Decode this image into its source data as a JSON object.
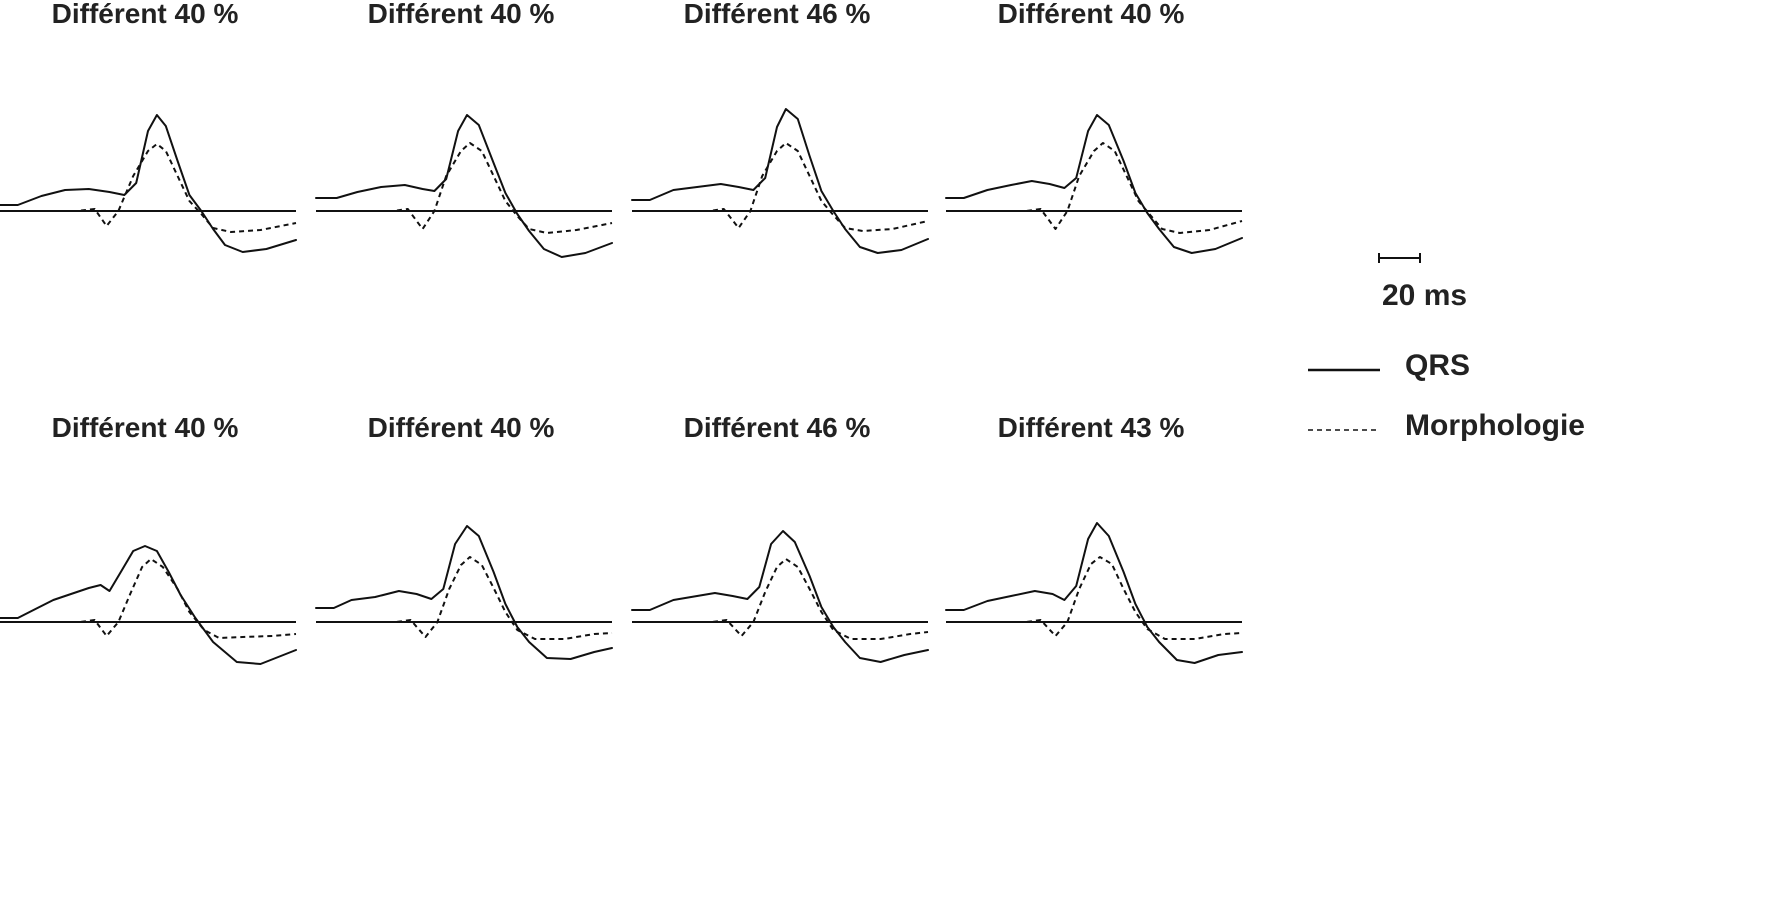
{
  "chart_data": {
    "type": "line",
    "colors": {
      "ink": "#111111",
      "text": "#222222",
      "background": "#ffffff"
    },
    "scale_bar": {
      "duration_ms": 20,
      "label": "20 ms"
    },
    "legend": [
      {
        "label": "QRS",
        "style": "solid"
      },
      {
        "label": "Morphologie",
        "style": "dashed"
      }
    ],
    "panels": [
      {
        "title": "Différent 40 %",
        "row": 0,
        "col": 0,
        "qrs": [
          [
            0,
            -6
          ],
          [
            6,
            -6
          ],
          [
            14,
            -15
          ],
          [
            22,
            -21
          ],
          [
            30,
            -22
          ],
          [
            37,
            -19
          ],
          [
            42,
            -16
          ],
          [
            46,
            -28
          ],
          [
            50,
            -80
          ],
          [
            53,
            -96
          ],
          [
            56,
            -85
          ],
          [
            60,
            -50
          ],
          [
            64,
            -16
          ],
          [
            68,
            0
          ],
          [
            72,
            18
          ],
          [
            76,
            34
          ],
          [
            82,
            41
          ],
          [
            90,
            38
          ],
          [
            100,
            29
          ]
        ],
        "morph": [
          [
            0,
            0
          ],
          [
            26,
            0
          ],
          [
            32,
            -2
          ],
          [
            36,
            15
          ],
          [
            40,
            0
          ],
          [
            45,
            -35
          ],
          [
            50,
            -60
          ],
          [
            53,
            -67
          ],
          [
            56,
            -60
          ],
          [
            60,
            -35
          ],
          [
            64,
            -10
          ],
          [
            68,
            3
          ],
          [
            72,
            17
          ],
          [
            78,
            21
          ],
          [
            88,
            19
          ],
          [
            100,
            12
          ]
        ]
      },
      {
        "title": "Différent 40 %",
        "row": 0,
        "col": 1,
        "qrs": [
          [
            0,
            -13
          ],
          [
            7,
            -13
          ],
          [
            14,
            -19
          ],
          [
            22,
            -24
          ],
          [
            30,
            -26
          ],
          [
            36,
            -22
          ],
          [
            40,
            -20
          ],
          [
            44,
            -32
          ],
          [
            48,
            -80
          ],
          [
            51,
            -96
          ],
          [
            55,
            -86
          ],
          [
            60,
            -48
          ],
          [
            64,
            -18
          ],
          [
            68,
            3
          ],
          [
            72,
            20
          ],
          [
            77,
            38
          ],
          [
            83,
            46
          ],
          [
            91,
            42
          ],
          [
            100,
            32
          ]
        ],
        "morph": [
          [
            0,
            0
          ],
          [
            26,
            0
          ],
          [
            31,
            -2
          ],
          [
            36,
            18
          ],
          [
            40,
            0
          ],
          [
            44,
            -35
          ],
          [
            49,
            -60
          ],
          [
            52,
            -68
          ],
          [
            56,
            -60
          ],
          [
            60,
            -35
          ],
          [
            64,
            -10
          ],
          [
            68,
            5
          ],
          [
            72,
            18
          ],
          [
            78,
            22
          ],
          [
            88,
            19
          ],
          [
            100,
            12
          ]
        ]
      },
      {
        "title": "Différent 46 %",
        "row": 0,
        "col": 2,
        "qrs": [
          [
            0,
            -11
          ],
          [
            6,
            -11
          ],
          [
            14,
            -21
          ],
          [
            22,
            -24
          ],
          [
            30,
            -27
          ],
          [
            36,
            -24
          ],
          [
            41,
            -21
          ],
          [
            45,
            -33
          ],
          [
            49,
            -84
          ],
          [
            52,
            -102
          ],
          [
            56,
            -92
          ],
          [
            60,
            -55
          ],
          [
            64,
            -20
          ],
          [
            68,
            0
          ],
          [
            72,
            18
          ],
          [
            77,
            36
          ],
          [
            83,
            42
          ],
          [
            91,
            39
          ],
          [
            100,
            28
          ]
        ],
        "morph": [
          [
            0,
            0
          ],
          [
            26,
            0
          ],
          [
            31,
            -2
          ],
          [
            36,
            17
          ],
          [
            40,
            0
          ],
          [
            44,
            -35
          ],
          [
            49,
            -60
          ],
          [
            52,
            -68
          ],
          [
            56,
            -60
          ],
          [
            60,
            -35
          ],
          [
            64,
            -10
          ],
          [
            68,
            4
          ],
          [
            72,
            17
          ],
          [
            78,
            20
          ],
          [
            88,
            18
          ],
          [
            100,
            10
          ]
        ]
      },
      {
        "title": "Différent 40 %",
        "row": 0,
        "col": 3,
        "qrs": [
          [
            0,
            -13
          ],
          [
            6,
            -13
          ],
          [
            14,
            -21
          ],
          [
            22,
            -26
          ],
          [
            29,
            -30
          ],
          [
            35,
            -27
          ],
          [
            40,
            -23
          ],
          [
            44,
            -33
          ],
          [
            48,
            -80
          ],
          [
            51,
            -96
          ],
          [
            55,
            -86
          ],
          [
            60,
            -50
          ],
          [
            64,
            -18
          ],
          [
            68,
            2
          ],
          [
            72,
            18
          ],
          [
            77,
            36
          ],
          [
            83,
            42
          ],
          [
            91,
            38
          ],
          [
            100,
            27
          ]
        ],
        "morph": [
          [
            0,
            0
          ],
          [
            27,
            0
          ],
          [
            32,
            -2
          ],
          [
            37,
            18
          ],
          [
            41,
            0
          ],
          [
            45,
            -35
          ],
          [
            50,
            -60
          ],
          [
            53,
            -68
          ],
          [
            57,
            -60
          ],
          [
            61,
            -35
          ],
          [
            65,
            -10
          ],
          [
            69,
            4
          ],
          [
            73,
            18
          ],
          [
            79,
            22
          ],
          [
            89,
            19
          ],
          [
            100,
            10
          ]
        ]
      },
      {
        "title": "Différent 40 %",
        "row": 1,
        "col": 0,
        "qrs": [
          [
            0,
            -4
          ],
          [
            6,
            -4
          ],
          [
            12,
            -13
          ],
          [
            18,
            -22
          ],
          [
            24,
            -28
          ],
          [
            30,
            -34
          ],
          [
            34,
            -37
          ],
          [
            37,
            -31
          ],
          [
            41,
            -51
          ],
          [
            45,
            -71
          ],
          [
            49,
            -76
          ],
          [
            53,
            -71
          ],
          [
            57,
            -50
          ],
          [
            61,
            -27
          ],
          [
            66,
            -4
          ],
          [
            72,
            20
          ],
          [
            80,
            40
          ],
          [
            88,
            42
          ],
          [
            100,
            28
          ]
        ],
        "morph": [
          [
            0,
            0
          ],
          [
            27,
            0
          ],
          [
            32,
            -2
          ],
          [
            36,
            14
          ],
          [
            40,
            0
          ],
          [
            44,
            -28
          ],
          [
            48,
            -55
          ],
          [
            51,
            -63
          ],
          [
            55,
            -55
          ],
          [
            60,
            -33
          ],
          [
            64,
            -10
          ],
          [
            69,
            8
          ],
          [
            74,
            16
          ],
          [
            82,
            15
          ],
          [
            92,
            14
          ],
          [
            100,
            12
          ]
        ]
      },
      {
        "title": "Différent 40 %",
        "row": 1,
        "col": 1,
        "qrs": [
          [
            0,
            -14
          ],
          [
            6,
            -14
          ],
          [
            12,
            -22
          ],
          [
            20,
            -25
          ],
          [
            28,
            -31
          ],
          [
            34,
            -28
          ],
          [
            39,
            -23
          ],
          [
            43,
            -33
          ],
          [
            47,
            -78
          ],
          [
            51,
            -96
          ],
          [
            55,
            -86
          ],
          [
            60,
            -50
          ],
          [
            64,
            -18
          ],
          [
            68,
            5
          ],
          [
            72,
            20
          ],
          [
            78,
            36
          ],
          [
            86,
            37
          ],
          [
            94,
            30
          ],
          [
            100,
            26
          ]
        ],
        "morph": [
          [
            0,
            0
          ],
          [
            27,
            0
          ],
          [
            32,
            -2
          ],
          [
            37,
            15
          ],
          [
            41,
            0
          ],
          [
            45,
            -33
          ],
          [
            49,
            -57
          ],
          [
            52,
            -65
          ],
          [
            56,
            -57
          ],
          [
            60,
            -34
          ],
          [
            64,
            -10
          ],
          [
            68,
            8
          ],
          [
            74,
            17
          ],
          [
            84,
            17
          ],
          [
            94,
            12
          ],
          [
            100,
            11
          ]
        ]
      },
      {
        "title": "Différent 46 %",
        "row": 1,
        "col": 2,
        "qrs": [
          [
            0,
            -12
          ],
          [
            6,
            -12
          ],
          [
            14,
            -22
          ],
          [
            22,
            -26
          ],
          [
            28,
            -29
          ],
          [
            34,
            -26
          ],
          [
            39,
            -23
          ],
          [
            43,
            -35
          ],
          [
            47,
            -78
          ],
          [
            51,
            -91
          ],
          [
            55,
            -80
          ],
          [
            60,
            -46
          ],
          [
            64,
            -15
          ],
          [
            68,
            5
          ],
          [
            72,
            20
          ],
          [
            77,
            36
          ],
          [
            84,
            40
          ],
          [
            92,
            33
          ],
          [
            100,
            28
          ]
        ],
        "morph": [
          [
            0,
            0
          ],
          [
            27,
            0
          ],
          [
            32,
            -2
          ],
          [
            37,
            14
          ],
          [
            41,
            0
          ],
          [
            45,
            -30
          ],
          [
            49,
            -55
          ],
          [
            52,
            -63
          ],
          [
            56,
            -55
          ],
          [
            60,
            -33
          ],
          [
            64,
            -10
          ],
          [
            68,
            8
          ],
          [
            74,
            17
          ],
          [
            84,
            17
          ],
          [
            94,
            12
          ],
          [
            100,
            10
          ]
        ]
      },
      {
        "title": "Différent 43 %",
        "row": 1,
        "col": 3,
        "qrs": [
          [
            0,
            -12
          ],
          [
            6,
            -12
          ],
          [
            14,
            -21
          ],
          [
            22,
            -26
          ],
          [
            30,
            -31
          ],
          [
            36,
            -28
          ],
          [
            40,
            -22
          ],
          [
            44,
            -36
          ],
          [
            48,
            -83
          ],
          [
            51,
            -99
          ],
          [
            55,
            -86
          ],
          [
            60,
            -50
          ],
          [
            64,
            -18
          ],
          [
            68,
            5
          ],
          [
            72,
            20
          ],
          [
            78,
            38
          ],
          [
            84,
            41
          ],
          [
            92,
            33
          ],
          [
            100,
            30
          ]
        ],
        "morph": [
          [
            0,
            0
          ],
          [
            27,
            0
          ],
          [
            32,
            -2
          ],
          [
            37,
            14
          ],
          [
            41,
            0
          ],
          [
            45,
            -33
          ],
          [
            49,
            -58
          ],
          [
            52,
            -65
          ],
          [
            56,
            -58
          ],
          [
            60,
            -33
          ],
          [
            64,
            -10
          ],
          [
            68,
            7
          ],
          [
            74,
            17
          ],
          [
            84,
            17
          ],
          [
            94,
            12
          ],
          [
            100,
            11
          ]
        ]
      }
    ]
  }
}
